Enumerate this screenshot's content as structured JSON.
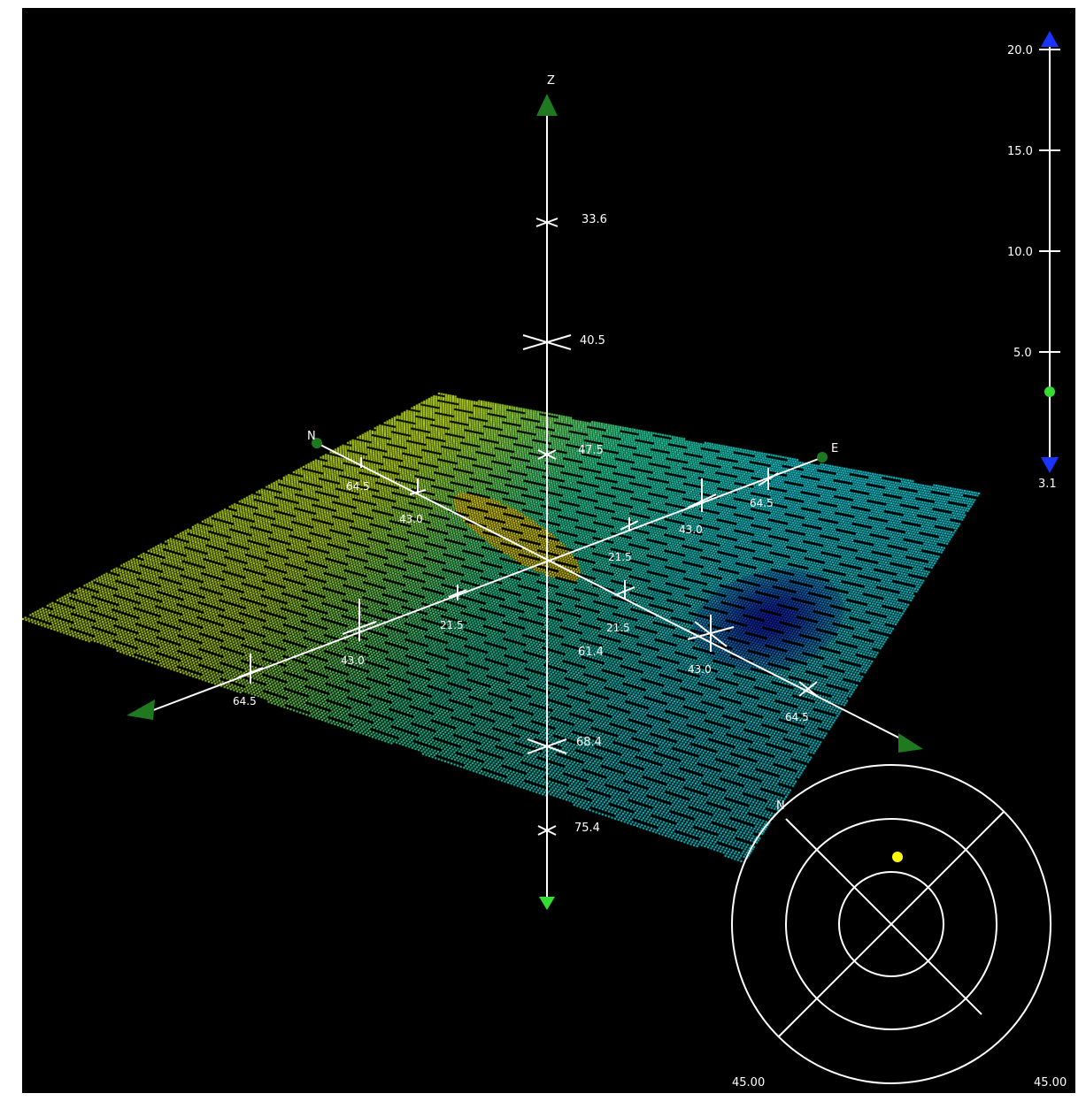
{
  "colors": {
    "background": "#000000",
    "axis": "#ffffff",
    "cone": "#1f7a1f",
    "cone_bright": "#33ff33",
    "slider_arrow": "#1a33ff",
    "sun": "#ffff00"
  },
  "axes": {
    "z_label": "Z",
    "north_label": "N",
    "east_label": "E",
    "z_ticks": [
      "33.6",
      "40.5",
      "47.5",
      "61.4",
      "68.4",
      "75.4"
    ],
    "north_ticks": [
      "64.5",
      "43.0"
    ],
    "east_ticks": [
      "64.5",
      "43.0",
      "21.5"
    ],
    "west_ticks": [
      "21.5",
      "43.0",
      "64.5"
    ],
    "south_ticks": [
      "21.5",
      "43.0",
      "64.5"
    ]
  },
  "depth_slider": {
    "ticks": [
      "20.0",
      "15.0",
      "10.0",
      "5.0"
    ],
    "min_label": "3.1",
    "value": 3.1,
    "max": 20.0,
    "handle_icon": "slider-handle",
    "up_icon": "triangle-up",
    "down_icon": "triangle-down"
  },
  "compass": {
    "north_label": "N",
    "sun_icon": "sun-dot"
  },
  "corner_labels": {
    "left": "45.00",
    "right": "45.00"
  }
}
